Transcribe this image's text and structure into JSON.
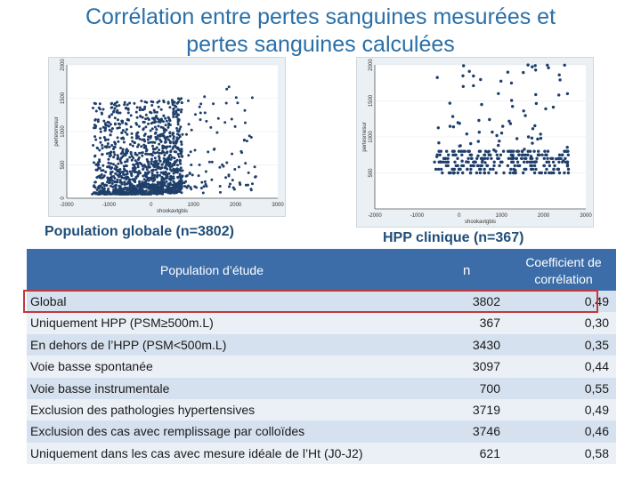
{
  "title_line1": "Corrélation entre pertes sanguines mesurées et",
  "title_line2": "pertes sanguines calculées",
  "chart_data": [
    {
      "type": "scatter",
      "xlabel": "shookavtgbis",
      "ylabel": "pertesmesur",
      "xticks": [
        "-2000",
        "-1000",
        "0",
        "1000",
        "2000",
        "3000"
      ],
      "yticks": [
        "0",
        "500",
        "1000",
        "1500",
        "2000"
      ],
      "xlim": [
        -2000,
        3000
      ],
      "ylim": [
        0,
        2000
      ]
    },
    {
      "type": "scatter",
      "xlabel": "shookavtgbis",
      "ylabel": "pertesmesur",
      "xticks": [
        "-2000",
        "-1000",
        "0",
        "1000",
        "2000",
        "3000"
      ],
      "yticks": [
        "500",
        "1000",
        "1500",
        "2000"
      ],
      "xlim": [
        -2000,
        3000
      ],
      "ylim": [
        0,
        2000
      ]
    }
  ],
  "caption_left": "Population globale (n=3802)",
  "caption_right": "HPP clinique (n=367)",
  "table": {
    "header_population": "Population d’étude",
    "header_n": "n",
    "header_coef_line1": "Coefficient de",
    "header_coef_line2": "corrélation",
    "rows": [
      {
        "label": "Global",
        "n": "3802",
        "coef": "0,49"
      },
      {
        "label": "Uniquement HPP (PSM≥500m.L)",
        "n": "367",
        "coef": "0,30"
      },
      {
        "label": "En dehors de l’HPP (PSM<500m.L)",
        "n": "3430",
        "coef": "0,35"
      },
      {
        "label": "Voie basse spontanée",
        "n": "3097",
        "coef": "0,44"
      },
      {
        "label": "Voie basse instrumentale",
        "n": "700",
        "coef": "0,55"
      },
      {
        "label": "Exclusion des pathologies hypertensives",
        "n": "3719",
        "coef": "0,49"
      },
      {
        "label": "Exclusion des cas avec remplissage par colloïdes",
        "n": "3746",
        "coef": "0,46"
      },
      {
        "label": "Uniquement dans les cas avec mesure idéale de l’Ht (J0-J2)",
        "n": "621",
        "coef": "0,58"
      }
    ]
  }
}
